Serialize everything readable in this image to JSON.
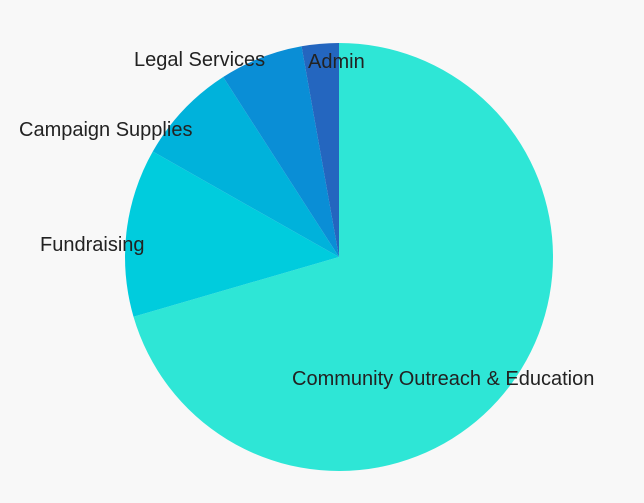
{
  "chart_data": {
    "type": "pie",
    "title": "",
    "start_position": "top",
    "direction": "clockwise",
    "legend": "none",
    "slices": [
      {
        "label": "Community Outreach & Education",
        "value": 70.5,
        "color": "#2ee6d6"
      },
      {
        "label": "Fundraising",
        "value": 12.7,
        "color": "#00ccdd"
      },
      {
        "label": "Campaign Supplies",
        "value": 7.7,
        "color": "#00b2db"
      },
      {
        "label": "Legal Services",
        "value": 6.3,
        "color": "#0a8ed6"
      },
      {
        "label": "Admin",
        "value": 2.8,
        "color": "#2466bf"
      }
    ]
  }
}
